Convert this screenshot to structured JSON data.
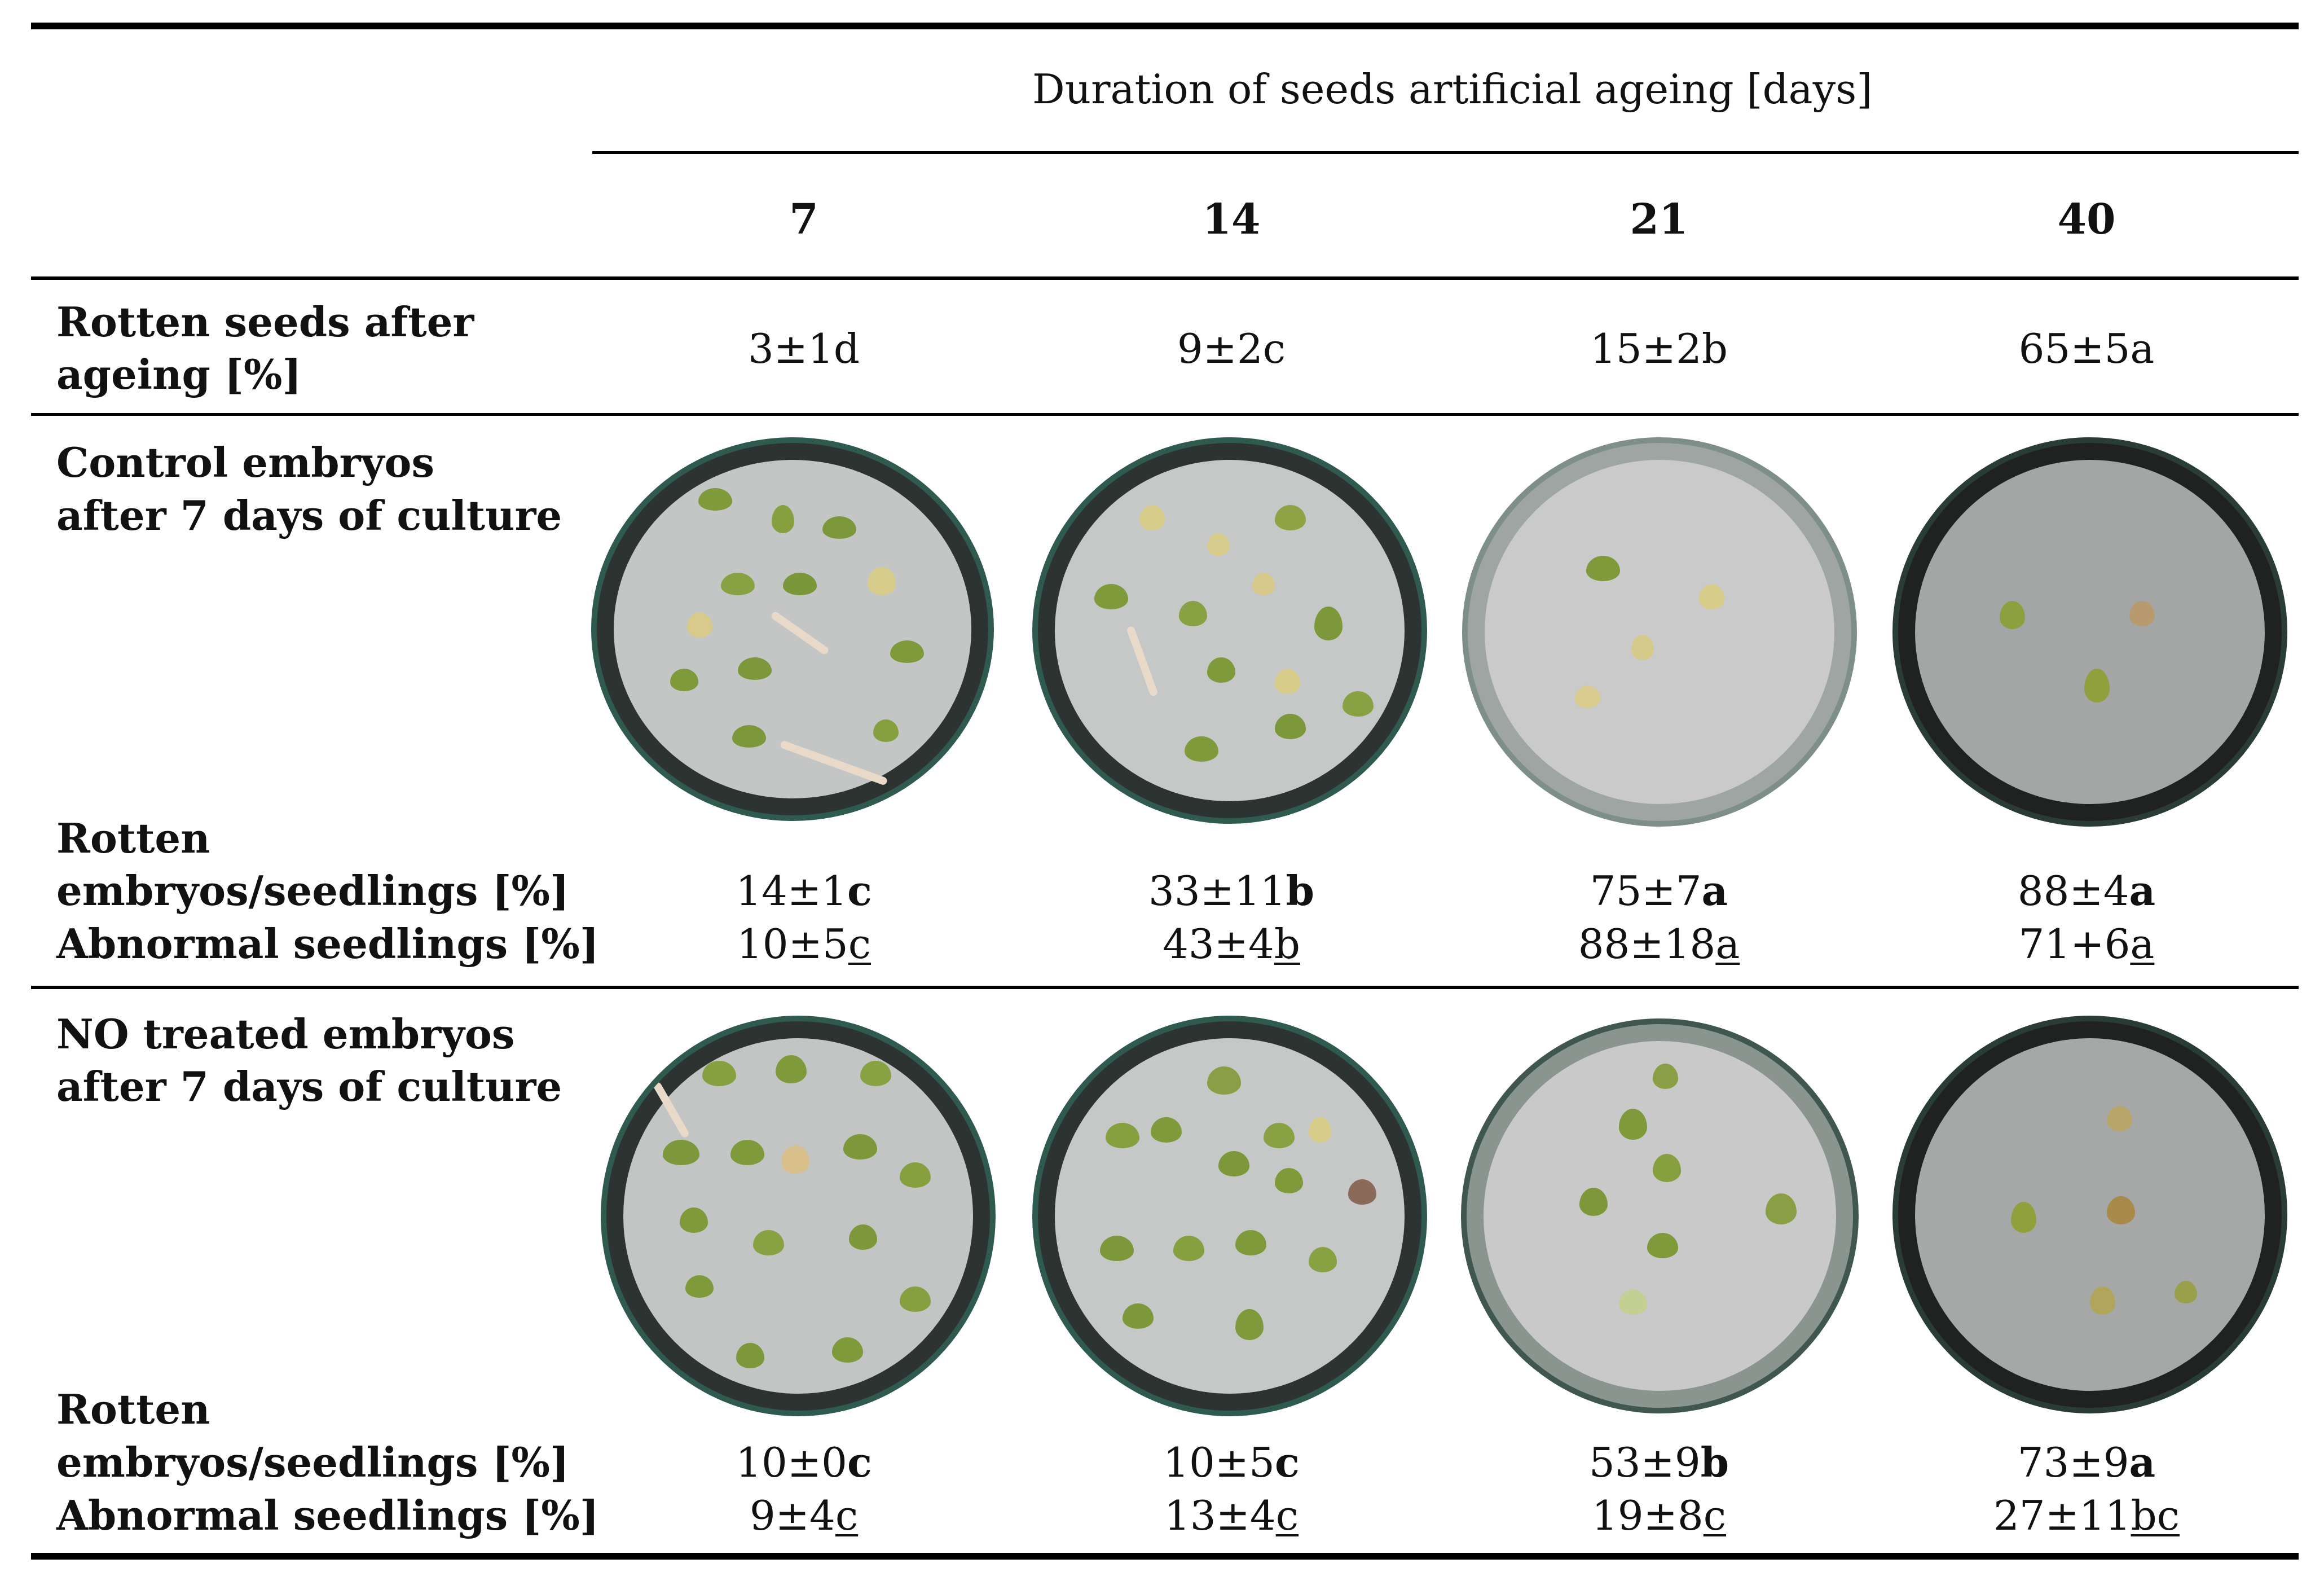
{
  "header": {
    "title": "Duration of seeds artificial ageing [days]",
    "columns": [
      "7",
      "14",
      "21",
      "40"
    ]
  },
  "rows": {
    "rotten_seeds": {
      "label_line1": "Rotten seeds after",
      "label_line2": "ageing [%]",
      "values": [
        "3±1d",
        "9±2c",
        "15±2b",
        "65±5a"
      ]
    },
    "control": {
      "label_line1": "Control embryos",
      "label_line2": "after 7 days of culture",
      "rotten_label_line1": "Rotten",
      "rotten_label_line2": "embryos/seedlings [%]",
      "abnormal_label": "Abnormal seedlings [%]",
      "rotten_values": [
        {
          "num": "14±1",
          "letter": "c"
        },
        {
          "num": "33±11",
          "letter": "b"
        },
        {
          "num": "75±7",
          "letter": "a"
        },
        {
          "num": "88±4",
          "letter": "a"
        }
      ],
      "abnormal_values": [
        {
          "num": "10±5",
          "letter": "c"
        },
        {
          "num": "43±4",
          "letter": "b"
        },
        {
          "num": "88±18",
          "letter": "a"
        },
        {
          "num": "71+6",
          "letter": "a"
        }
      ]
    },
    "no_treated": {
      "label_line1": "NO treated embryos",
      "label_line2": "after 7 days of culture",
      "rotten_label_line1": "Rotten",
      "rotten_label_line2": "embryos/seedlings [%]",
      "abnormal_label": "Abnormal seedlings [%]",
      "rotten_values": [
        {
          "num": "10±0",
          "letter": "c"
        },
        {
          "num": "10±5",
          "letter": "c"
        },
        {
          "num": "53±9",
          "letter": "b"
        },
        {
          "num": "73±9",
          "letter": "a"
        }
      ],
      "abnormal_values": [
        {
          "num": "9±4",
          "letter": "c"
        },
        {
          "num": "13±4",
          "letter": "c"
        },
        {
          "num": "19±8",
          "letter": "c"
        },
        {
          "num": "27±11",
          "letter": "bc"
        }
      ]
    }
  },
  "colors": {
    "rule": "#000000",
    "text": "#111111",
    "dish_rim": "#3d3d3d",
    "dish_paper": "#c8c9c9",
    "seedling_green": "#7f9a3a",
    "seed_tan": "#d8cc8a"
  }
}
